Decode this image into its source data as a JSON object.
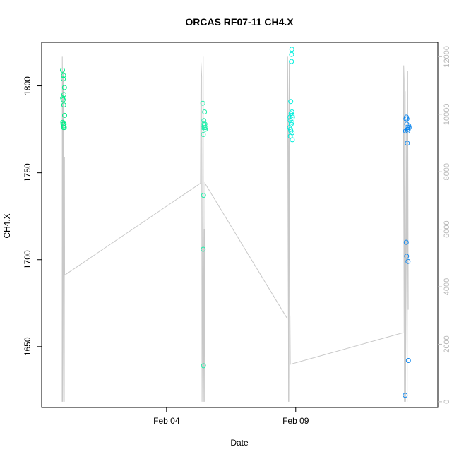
{
  "chart_data": {
    "type": "scatter",
    "title": "ORCAS RF07-11 CH4.X",
    "xlabel": "Date",
    "ylabel": "CH4.X",
    "x_range": [
      "2016-01-30T04:00",
      "2016-02-14T12:00"
    ],
    "x_ticks": [
      {
        "date": "2016-02-04",
        "label": "Feb 04"
      },
      {
        "date": "2016-02-09",
        "label": "Feb 09"
      }
    ],
    "y_range": [
      1615,
      1825
    ],
    "y_ticks": [
      1650,
      1700,
      1750,
      1800
    ],
    "y2_range": [
      -200,
      12500
    ],
    "y2_ticks": [
      0,
      2000,
      4000,
      6000,
      8000,
      10000,
      12000
    ],
    "y2_color": "#bbbbbb",
    "grid": false,
    "series": [
      {
        "color": "#00ee88",
        "points": [
          [
            "2016-01-30T23:20",
            1809
          ],
          [
            "2016-01-30T23:30",
            1793
          ],
          [
            "2016-01-30T23:40",
            1779
          ],
          [
            "2016-01-30T23:50",
            1778
          ],
          [
            "2016-01-31T00:00",
            1792
          ],
          [
            "2016-01-31T00:10",
            1804
          ],
          [
            "2016-01-31T00:20",
            1806
          ],
          [
            "2016-01-31T00:30",
            1789
          ],
          [
            "2016-01-31T00:40",
            1795
          ],
          [
            "2016-01-31T00:50",
            1778
          ],
          [
            "2016-01-31T01:00",
            1776
          ],
          [
            "2016-01-31T01:10",
            1799
          ],
          [
            "2016-01-31T01:20",
            1783
          ],
          [
            "2016-01-31T00:30",
            1777
          ],
          [
            "2016-01-31T00:45",
            1778
          ],
          [
            "2016-01-31T00:15",
            1776
          ]
        ]
      },
      {
        "color": "#22eeaa",
        "points": [
          [
            "2016-02-05T09:40",
            1790
          ],
          [
            "2016-02-05T10:00",
            1776
          ],
          [
            "2016-02-05T10:10",
            1772
          ],
          [
            "2016-02-05T10:20",
            1737
          ],
          [
            "2016-02-05T10:00",
            1706
          ],
          [
            "2016-02-05T10:20",
            1639
          ],
          [
            "2016-02-05T10:40",
            1780
          ],
          [
            "2016-02-05T11:00",
            1777
          ],
          [
            "2016-02-05T11:20",
            1785
          ],
          [
            "2016-02-05T11:40",
            1778
          ],
          [
            "2016-02-05T12:00",
            1775
          ],
          [
            "2016-02-05T12:20",
            1776
          ],
          [
            "2016-02-05T11:10",
            1776
          ],
          [
            "2016-02-05T10:50",
            1778
          ]
        ]
      },
      {
        "color": "#00eedd",
        "points": [
          [
            "2016-02-08T18:20",
            1776
          ],
          [
            "2016-02-08T18:40",
            1782
          ],
          [
            "2016-02-08T19:00",
            1771
          ],
          [
            "2016-02-08T19:20",
            1791
          ],
          [
            "2016-02-08T19:40",
            1784
          ],
          [
            "2016-02-08T20:00",
            1814
          ],
          [
            "2016-02-08T20:10",
            1818
          ],
          [
            "2016-02-08T20:20",
            1821
          ],
          [
            "2016-02-08T20:30",
            1785
          ],
          [
            "2016-02-08T20:40",
            1773
          ],
          [
            "2016-02-08T20:50",
            1769
          ],
          [
            "2016-02-08T21:00",
            1782
          ],
          [
            "2016-02-08T19:10",
            1775
          ],
          [
            "2016-02-08T19:50",
            1778
          ],
          [
            "2016-02-08T20:20",
            1779
          ],
          [
            "2016-02-08T18:50",
            1780
          ],
          [
            "2016-02-08T19:30",
            1774
          ],
          [
            "2016-02-08T20:40",
            1783
          ]
        ]
      },
      {
        "color": "#1188ee",
        "points": [
          [
            "2016-02-13T05:40",
            1622
          ],
          [
            "2016-02-13T06:00",
            1774
          ],
          [
            "2016-02-13T06:20",
            1781
          ],
          [
            "2016-02-13T06:40",
            1710
          ],
          [
            "2016-02-13T07:00",
            1702
          ],
          [
            "2016-02-13T07:20",
            1781
          ],
          [
            "2016-02-13T07:40",
            1767
          ],
          [
            "2016-02-13T08:00",
            1775
          ],
          [
            "2016-02-13T08:20",
            1699
          ],
          [
            "2016-02-13T08:40",
            1642
          ],
          [
            "2016-02-13T09:00",
            1777
          ],
          [
            "2016-02-13T09:20",
            1776
          ],
          [
            "2016-02-13T07:10",
            1778
          ],
          [
            "2016-02-13T07:30",
            1776
          ],
          [
            "2016-02-13T07:50",
            1775
          ],
          [
            "2016-02-13T08:10",
            1774
          ],
          [
            "2016-02-13T06:50",
            1782
          ],
          [
            "2016-02-13T08:30",
            1775
          ]
        ]
      }
    ],
    "secondary_line": {
      "color": "#c8c8c8",
      "points": [
        [
          "2016-01-30T23:00",
          0
        ],
        [
          "2016-01-30T23:05",
          4500
        ],
        [
          "2016-01-30T23:10",
          12000
        ],
        [
          "2016-01-30T23:20",
          11000
        ],
        [
          "2016-01-30T23:30",
          0
        ],
        [
          "2016-01-30T23:40",
          6500
        ],
        [
          "2016-01-30T23:50",
          10000
        ],
        [
          "2016-01-31T00:00",
          11500
        ],
        [
          "2016-01-31T00:10",
          9800
        ],
        [
          "2016-01-31T00:20",
          2000
        ],
        [
          "2016-01-31T00:30",
          0
        ],
        [
          "2016-01-31T00:40",
          7500
        ],
        [
          "2016-01-31T00:50",
          8000
        ],
        [
          "2016-01-31T01:00",
          0
        ],
        [
          "2016-01-31T01:10",
          8500
        ],
        [
          "2016-01-31T01:20",
          4400
        ],
        [
          "2016-02-05T07:30",
          7600
        ],
        [
          "2016-02-05T08:00",
          11800
        ],
        [
          "2016-02-05T08:40",
          11300
        ],
        [
          "2016-02-05T09:00",
          0
        ],
        [
          "2016-02-05T09:30",
          4200
        ],
        [
          "2016-02-05T10:00",
          12000
        ],
        [
          "2016-02-05T10:20",
          0
        ],
        [
          "2016-02-05T10:40",
          2200
        ],
        [
          "2016-02-05T11:00",
          6000
        ],
        [
          "2016-02-05T11:20",
          0
        ],
        [
          "2016-02-05T11:40",
          7600
        ],
        [
          "2016-02-08T16:00",
          2900
        ],
        [
          "2016-02-08T16:30",
          12000
        ],
        [
          "2016-02-08T17:00",
          9000
        ],
        [
          "2016-02-08T17:20",
          0
        ],
        [
          "2016-02-08T17:40",
          8500
        ],
        [
          "2016-02-08T18:00",
          11800
        ],
        [
          "2016-02-08T18:20",
          0
        ],
        [
          "2016-02-08T18:40",
          3000
        ],
        [
          "2016-02-08T19:00",
          1300
        ],
        [
          "2016-02-13T03:40",
          2400
        ],
        [
          "2016-02-13T04:20",
          11700
        ],
        [
          "2016-02-13T04:40",
          11200
        ],
        [
          "2016-02-13T05:00",
          0
        ],
        [
          "2016-02-13T05:20",
          6500
        ],
        [
          "2016-02-13T05:40",
          10800
        ],
        [
          "2016-02-13T06:00",
          0
        ],
        [
          "2016-02-13T06:30",
          5000
        ],
        [
          "2016-02-13T07:00",
          9500
        ],
        [
          "2016-02-13T07:30",
          0
        ],
        [
          "2016-02-13T08:00",
          11500
        ],
        [
          "2016-02-13T08:30",
          3200
        ]
      ]
    }
  }
}
